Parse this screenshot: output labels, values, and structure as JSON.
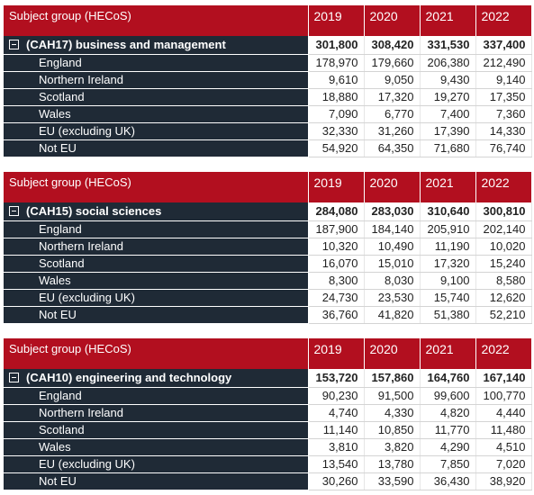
{
  "header": {
    "label": "Subject group (HECoS)",
    "years": [
      "2019",
      "2020",
      "2021",
      "2022"
    ]
  },
  "groups": [
    {
      "name": "(CAH17) business and management",
      "totals": [
        "301,800",
        "308,420",
        "331,530",
        "337,400"
      ],
      "rows": [
        {
          "label": "England",
          "values": [
            "178,970",
            "179,660",
            "206,380",
            "212,490"
          ]
        },
        {
          "label": "Northern Ireland",
          "values": [
            "9,610",
            "9,050",
            "9,430",
            "9,140"
          ]
        },
        {
          "label": "Scotland",
          "values": [
            "18,880",
            "17,320",
            "19,270",
            "17,350"
          ]
        },
        {
          "label": "Wales",
          "values": [
            "7,090",
            "6,770",
            "7,400",
            "7,360"
          ]
        },
        {
          "label": "EU (excluding UK)",
          "values": [
            "32,330",
            "31,260",
            "17,390",
            "14,330"
          ]
        },
        {
          "label": "Not EU",
          "values": [
            "54,920",
            "64,350",
            "71,680",
            "76,740"
          ]
        }
      ]
    },
    {
      "name": "(CAH15) social sciences",
      "totals": [
        "284,080",
        "283,030",
        "310,640",
        "300,810"
      ],
      "rows": [
        {
          "label": "England",
          "values": [
            "187,900",
            "184,140",
            "205,910",
            "202,140"
          ]
        },
        {
          "label": "Northern Ireland",
          "values": [
            "10,320",
            "10,490",
            "11,190",
            "10,020"
          ]
        },
        {
          "label": "Scotland",
          "values": [
            "16,070",
            "15,010",
            "17,320",
            "15,240"
          ]
        },
        {
          "label": "Wales",
          "values": [
            "8,300",
            "8,030",
            "9,100",
            "8,580"
          ]
        },
        {
          "label": "EU (excluding UK)",
          "values": [
            "24,730",
            "23,530",
            "15,740",
            "12,620"
          ]
        },
        {
          "label": "Not EU",
          "values": [
            "36,760",
            "41,820",
            "51,380",
            "52,210"
          ]
        }
      ]
    },
    {
      "name": "(CAH10) engineering and technology",
      "totals": [
        "153,720",
        "157,860",
        "164,760",
        "167,140"
      ],
      "rows": [
        {
          "label": "England",
          "values": [
            "90,230",
            "91,500",
            "99,600",
            "100,770"
          ]
        },
        {
          "label": "Northern Ireland",
          "values": [
            "4,740",
            "4,330",
            "4,820",
            "4,440"
          ]
        },
        {
          "label": "Scotland",
          "values": [
            "11,140",
            "10,850",
            "11,770",
            "11,480"
          ]
        },
        {
          "label": "Wales",
          "values": [
            "3,810",
            "3,820",
            "4,290",
            "4,510"
          ]
        },
        {
          "label": "EU (excluding UK)",
          "values": [
            "13,540",
            "13,780",
            "7,850",
            "7,020"
          ]
        },
        {
          "label": "Not EU",
          "values": [
            "30,260",
            "33,590",
            "36,430",
            "38,920"
          ]
        }
      ]
    }
  ]
}
